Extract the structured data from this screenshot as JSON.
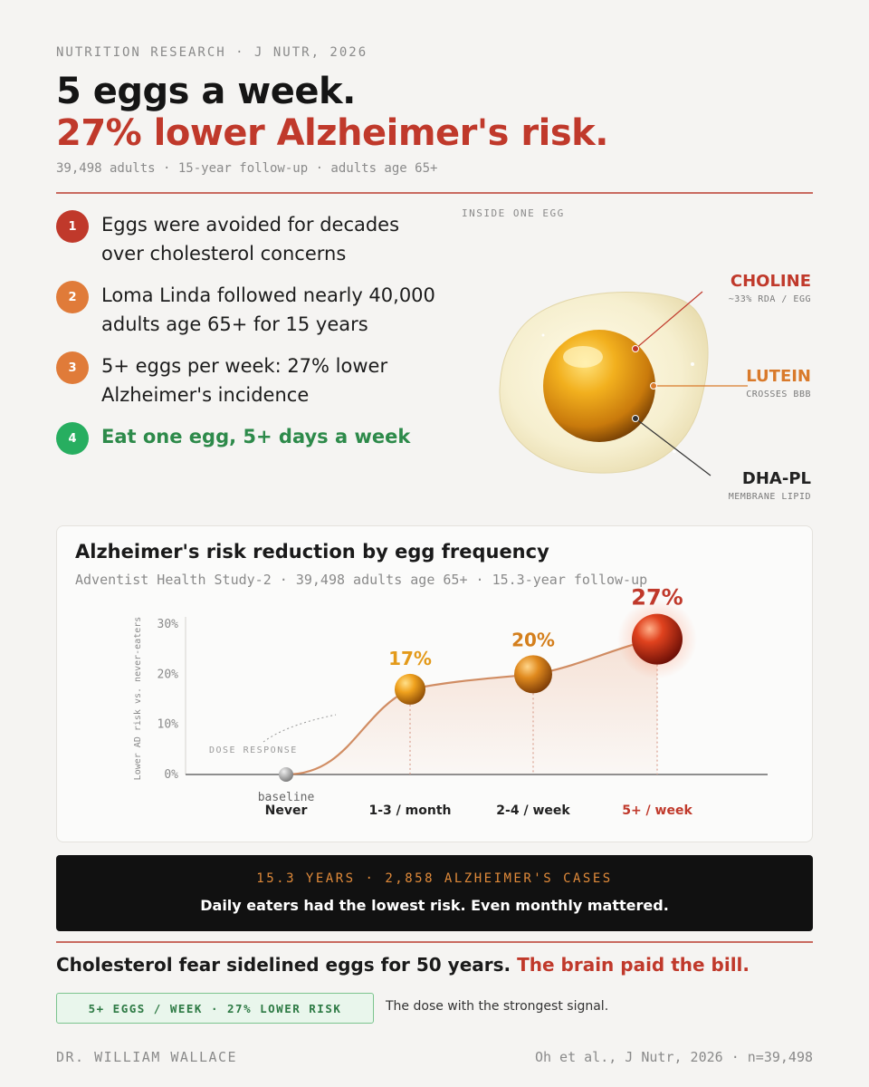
{
  "header": {
    "kicker": "NUTRITION RESEARCH · J NUTR, 2026",
    "title_line1": "5 eggs a week.",
    "title_line2": "27% lower Alzheimer's risk.",
    "subline": "39,498 adults · 15-year follow-up · adults age 65+"
  },
  "points": [
    {
      "num": "1",
      "text": "Eggs were avoided for decades over cholesterol concerns",
      "color": "#c0392b"
    },
    {
      "num": "2",
      "text": "Loma Linda followed nearly 40,000 adults age 65+ for 15 years",
      "color": "#e07b39"
    },
    {
      "num": "3",
      "text": "5+ eggs per week: 27% lower Alzheimer's incidence",
      "color": "#e07b39"
    },
    {
      "num": "4",
      "text": "Eat one egg, 5+ days a week",
      "color": "#27ae60"
    }
  ],
  "egg": {
    "kicker": "INSIDE ONE EGG",
    "nutrients": [
      {
        "name": "CHOLINE",
        "desc": "~33% RDA / EGG",
        "color": "#c0392b"
      },
      {
        "name": "LUTEIN",
        "desc": "CROSSES BBB",
        "color": "#d97a2b"
      },
      {
        "name": "DHA-PL",
        "desc": "MEMBRANE LIPID",
        "color": "#222222"
      }
    ]
  },
  "chart_card": {
    "title": "Alzheimer's risk reduction by egg frequency",
    "subtitle": "Adventist Health Study-2 · 39,498 adults age 65+ · 15.3-year follow-up"
  },
  "chart_data": {
    "type": "line",
    "categories": [
      "Never",
      "1-3 / month",
      "2-4 / week",
      "5+ / week"
    ],
    "values": [
      0,
      17,
      20,
      27
    ],
    "data_labels": [
      "baseline",
      "17%",
      "20%",
      "27%"
    ],
    "ylabel": "Lower AD risk vs. never-eaters",
    "ylim": [
      0,
      30
    ],
    "yticks": [
      "0%",
      "10%",
      "20%",
      "30%"
    ],
    "annotation": "DOSE RESPONSE",
    "colors": [
      "#9a9a9a",
      "#e39a1a",
      "#d47f1c",
      "#c0392b"
    ],
    "grid": false
  },
  "banner": {
    "line1": "15.3 YEARS · 2,858 ALZHEIMER'S CASES",
    "line2": "Daily eaters had the lowest risk. Even monthly mattered."
  },
  "conclusion": {
    "part1": "Cholesterol fear sidelined eggs for 50 years.",
    "part2": "The brain paid the bill."
  },
  "pill": {
    "label": "5+ EGGS / WEEK · 27% LOWER RISK",
    "note": "The dose with the strongest signal."
  },
  "footer": {
    "author": "DR. WILLIAM WALLACE",
    "citation": "Oh et al., J Nutr, 2026 · n=39,498"
  }
}
